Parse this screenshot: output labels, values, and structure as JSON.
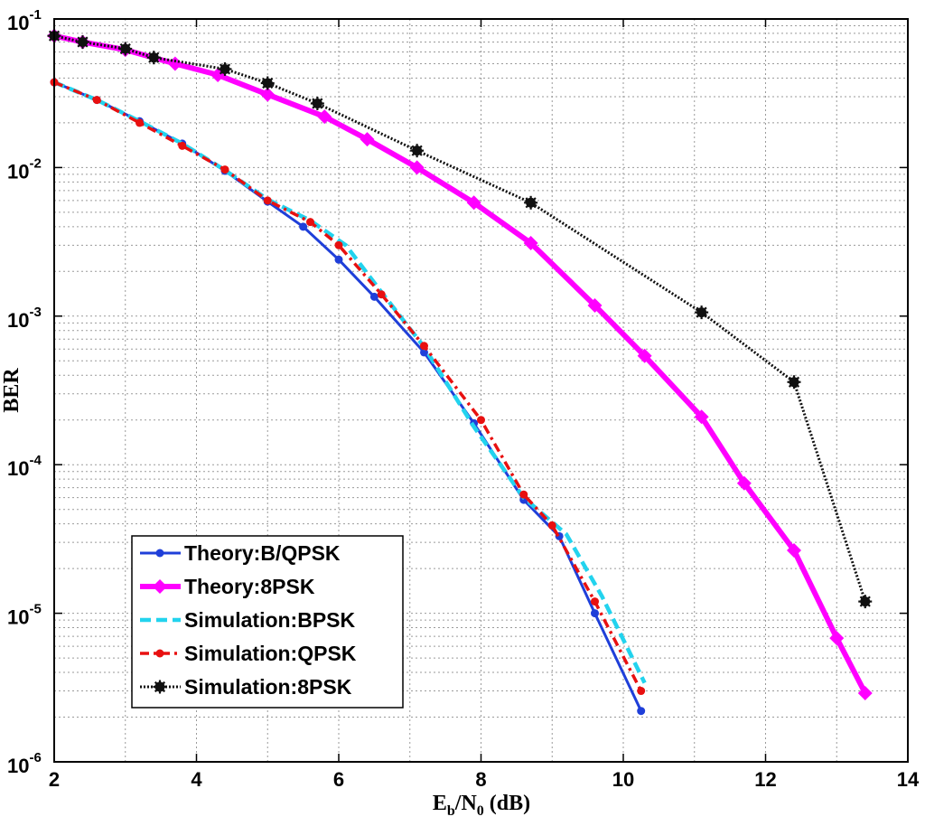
{
  "chart_data": {
    "type": "line",
    "xlabel": {
      "main": "E",
      "sub_b": "b",
      "slash": "/N",
      "sub_0": "0",
      "unit": " (dB)"
    },
    "ylabel": "BER",
    "xlim": [
      2,
      14
    ],
    "ylim": [
      1e-06,
      0.1
    ],
    "y_scale": "log",
    "grid": true,
    "legend_position": "bottom-left",
    "x_ticks": [
      "2",
      "4",
      "6",
      "8",
      "10",
      "12",
      "14"
    ],
    "y_ticks": [
      {
        "base": "10",
        "exp": "-1"
      },
      {
        "base": "10",
        "exp": "-2"
      },
      {
        "base": "10",
        "exp": "-3"
      },
      {
        "base": "10",
        "exp": "-4"
      },
      {
        "base": "10",
        "exp": "-5"
      },
      {
        "base": "10",
        "exp": "-6"
      }
    ],
    "series": [
      {
        "name": "Theory:B/QPSK",
        "color": "#1f3fd9",
        "style": "solid",
        "marker": "dot",
        "x": [
          2.0,
          2.6,
          3.2,
          3.8,
          4.4,
          5.0,
          5.5,
          6.0,
          6.5,
          7.2,
          7.9,
          8.6,
          9.1,
          9.6,
          10.25
        ],
        "y": [
          0.0375,
          0.0285,
          0.0205,
          0.0145,
          0.0095,
          0.0059,
          0.004,
          0.0024,
          0.00135,
          0.00057,
          0.00019,
          5.8e-05,
          3.3e-05,
          1e-05,
          2.2e-06
        ]
      },
      {
        "name": "Theory:8PSK",
        "color": "#ff00ff",
        "style": "solid",
        "marker": "diamond",
        "x": [
          2.0,
          2.4,
          3.0,
          3.7,
          4.3,
          5.0,
          5.8,
          6.4,
          7.1,
          7.9,
          8.7,
          9.6,
          10.3,
          11.1,
          11.7,
          12.4,
          13.0,
          13.4
        ],
        "y": [
          0.077,
          0.07,
          0.062,
          0.05,
          0.042,
          0.031,
          0.022,
          0.0155,
          0.01,
          0.0058,
          0.0031,
          0.00118,
          0.00054,
          0.00021,
          7.5e-05,
          2.65e-05,
          6.8e-06,
          2.9e-06
        ]
      },
      {
        "name": "Simulation:BPSK",
        "color": "#22d3ee",
        "style": "dashed",
        "marker": "none",
        "x": [
          2.0,
          2.6,
          3.2,
          3.8,
          4.4,
          5.0,
          5.6,
          6.1,
          6.6,
          7.2,
          7.9,
          8.6,
          9.2,
          9.7,
          10.3
        ],
        "y": [
          0.0375,
          0.0285,
          0.0205,
          0.0145,
          0.0096,
          0.0061,
          0.0044,
          0.003,
          0.00145,
          0.00062,
          0.00018,
          6e-05,
          3.4e-05,
          1.3e-05,
          3.4e-06
        ]
      },
      {
        "name": "Simulation:QPSK",
        "color": "#e81010",
        "style": "dashdot",
        "marker": "dot",
        "x": [
          2.0,
          2.6,
          3.2,
          3.8,
          4.4,
          5.0,
          5.6,
          6.0,
          6.6,
          7.2,
          8.0,
          8.6,
          9.0,
          9.6,
          10.25
        ],
        "y": [
          0.0375,
          0.0285,
          0.02,
          0.014,
          0.0097,
          0.006,
          0.0043,
          0.003,
          0.0014,
          0.00063,
          0.0002,
          6.3e-05,
          3.9e-05,
          1.2e-05,
          3e-06
        ]
      },
      {
        "name": "Simulation:8PSK",
        "color": "#111111",
        "style": "dotted",
        "marker": "star",
        "x": [
          2.0,
          2.4,
          3.0,
          3.4,
          4.4,
          5.0,
          5.7,
          7.1,
          8.7,
          11.1,
          12.4,
          13.4
        ],
        "y": [
          0.077,
          0.07,
          0.063,
          0.055,
          0.046,
          0.037,
          0.027,
          0.013,
          0.0058,
          0.00106,
          0.00036,
          1.2e-05
        ]
      }
    ]
  }
}
